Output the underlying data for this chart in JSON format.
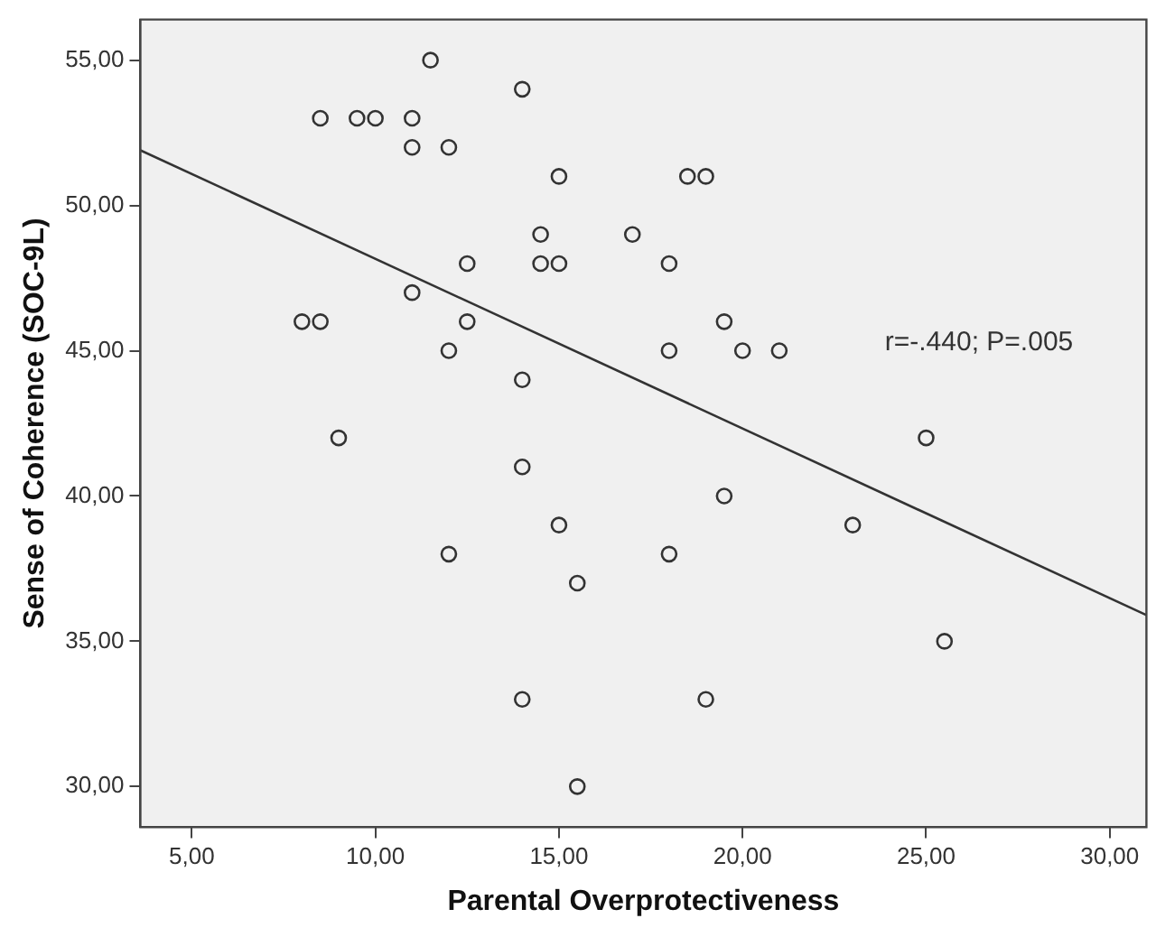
{
  "chart_data": {
    "type": "scatter",
    "xlabel": "Parental Overprotectiveness",
    "ylabel": "Sense of Coherence (SOC-9L)",
    "annotations": [
      "r=-.440; P=.005"
    ],
    "xlim": [
      3.6,
      31
    ],
    "ylim": [
      28.6,
      56.4
    ],
    "xticks": [
      {
        "value": 5,
        "label": "5,00"
      },
      {
        "value": 10,
        "label": "10,00"
      },
      {
        "value": 15,
        "label": "15,00"
      },
      {
        "value": 20,
        "label": "20,00"
      },
      {
        "value": 25,
        "label": "25,00"
      },
      {
        "value": 30,
        "label": "30,00"
      }
    ],
    "yticks": [
      {
        "value": 30,
        "label": "30,00"
      },
      {
        "value": 35,
        "label": "35,00"
      },
      {
        "value": 40,
        "label": "40,00"
      },
      {
        "value": 45,
        "label": "45,00"
      },
      {
        "value": 50,
        "label": "50,00"
      },
      {
        "value": 55,
        "label": "55,00"
      }
    ],
    "grid": false,
    "legend": false,
    "marker": "circle",
    "series": [
      {
        "color": "#333333",
        "x": [
          8.5,
          9.5,
          10,
          11,
          11,
          12,
          11.5,
          14,
          15,
          14.5,
          14.5,
          15,
          12.5,
          11,
          8,
          8.5,
          12.5,
          12,
          14,
          9,
          14,
          15,
          12,
          15.5,
          14,
          15.5,
          18.5,
          19,
          17,
          18,
          19.5,
          18,
          20,
          21,
          25,
          19.5,
          23,
          18,
          25.5,
          19
        ],
        "values": [
          53,
          53,
          53,
          53,
          52,
          52,
          55,
          54,
          51,
          49,
          48,
          48,
          48,
          47,
          46,
          46,
          46,
          45,
          44,
          42,
          41,
          39,
          38,
          37,
          33,
          30,
          51,
          51,
          49,
          48,
          46,
          45,
          45,
          45,
          42,
          40,
          39,
          38,
          35,
          33
        ]
      },
      {
        "type": "line",
        "color": "#333333",
        "x": [
          3.6,
          31
        ],
        "values": [
          51.9,
          35.9
        ],
        "marker": "none"
      }
    ]
  }
}
